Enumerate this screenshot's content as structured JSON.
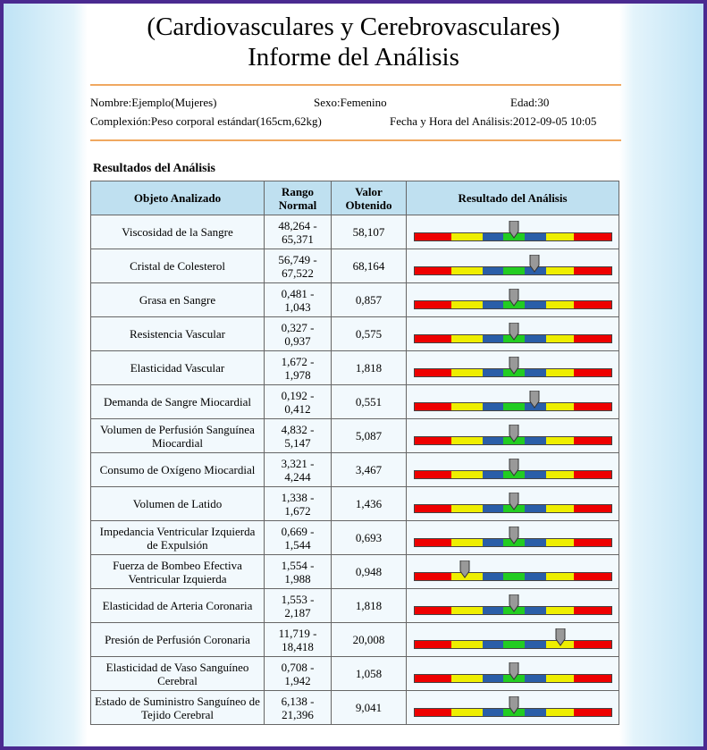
{
  "header": {
    "title_line1": "(Cardiovasculares y Cerebrovasculares)",
    "title_line2": "Informe del Análisis"
  },
  "info": {
    "name": "Nombre:Ejemplo(Mujeres)",
    "sex": "Sexo:Femenino",
    "age": "Edad:30",
    "build": "Complexión:Peso corporal estándar(165cm,62kg)",
    "datetime": "Fecha y Hora del Análisis:2012-09-05 10:05"
  },
  "table": {
    "title": "Resultados del Análisis",
    "columns": [
      "Objeto Analizado",
      "Rango Normal",
      "Valor Obtenido",
      "Resultado del Análisis"
    ],
    "rows": [
      [
        "Viscosidad de la Sangre",
        "48,264 - 65,371",
        "58,107"
      ],
      [
        "Cristal de Colesterol",
        "56,749 - 67,522",
        "68,164"
      ],
      [
        "Grasa en Sangre",
        "0,481 - 1,043",
        "0,857"
      ],
      [
        "Resistencia Vascular",
        "0,327 - 0,937",
        "0,575"
      ],
      [
        "Elasticidad Vascular",
        "1,672 - 1,978",
        "1,818"
      ],
      [
        "Demanda de Sangre Miocardial",
        "0,192 - 0,412",
        "0,551"
      ],
      [
        "Volumen de Perfusión Sanguínea Miocardial",
        "4,832 - 5,147",
        "5,087"
      ],
      [
        "Consumo de Oxígeno Miocardial",
        "3,321 - 4,244",
        "3,467"
      ],
      [
        "Volumen de Latido",
        "1,338 - 1,672",
        "1,436"
      ],
      [
        "Impedancia Ventricular Izquierda de Expulsión",
        "0,669 - 1,544",
        "0,693"
      ],
      [
        "Fuerza de Bombeo Efectiva Ventricular Izquierda",
        "1,554 - 1,988",
        "0,948"
      ],
      [
        "Elasticidad de Arteria Coronaria",
        "1,553 - 2,187",
        "1,818"
      ],
      [
        "Presión de Perfusión Coronaria",
        "11,719 - 18,418",
        "20,008"
      ],
      [
        "Elasticidad de Vaso Sanguíneo Cerebral",
        "0,708 - 1,942",
        "1,058"
      ],
      [
        "Estado de Suministro Sanguíneo de Tejido Cerebral",
        "6,138 - 21,396",
        "9,041"
      ]
    ]
  }
}
